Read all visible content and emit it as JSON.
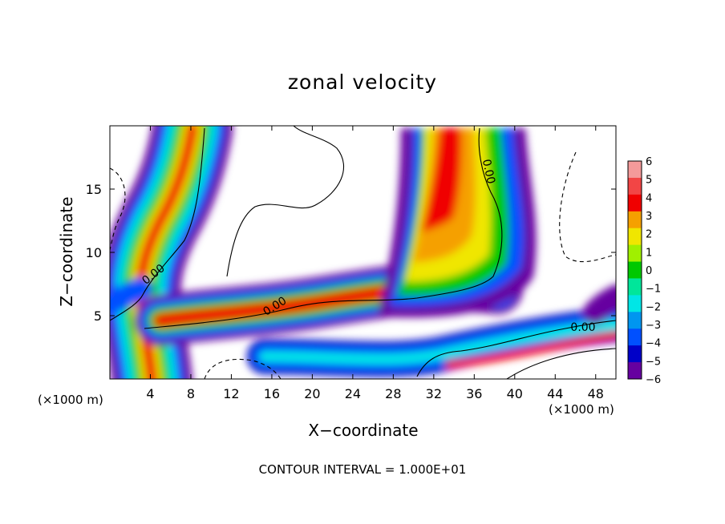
{
  "chart_data": {
    "type": "heatmap",
    "title": "zonal velocity",
    "xlabel": "X−coordinate",
    "ylabel": "Z−coordinate",
    "x_unit_label": "(×1000 m)",
    "x_range": [
      0,
      50
    ],
    "y_range": [
      0,
      20
    ],
    "x_ticks": [
      "4",
      "8",
      "12",
      "16",
      "20",
      "24",
      "28",
      "32",
      "36",
      "40",
      "44",
      "48"
    ],
    "y_ticks": [
      "5",
      "10",
      "15"
    ],
    "colorbar": {
      "range": [
        -6,
        6
      ],
      "labels": [
        "6",
        "5",
        "4",
        "3",
        "2",
        "1",
        "0",
        "−1",
        "−2",
        "−3",
        "−4",
        "−5",
        "−6"
      ],
      "colors": [
        "#f49a9a",
        "#f24545",
        "#f00000",
        "#f5a000",
        "#f0e600",
        "#a0f000",
        "#00c800",
        "#00e69a",
        "#00e6e6",
        "#0096f0",
        "#0050ff",
        "#0000c8",
        "#6600a0"
      ]
    },
    "contour_labels": [
      "0.00",
      "0.00",
      "0.00",
      "0.00"
    ],
    "footer": "CONTOUR INTERVAL = 1.000E+01"
  }
}
